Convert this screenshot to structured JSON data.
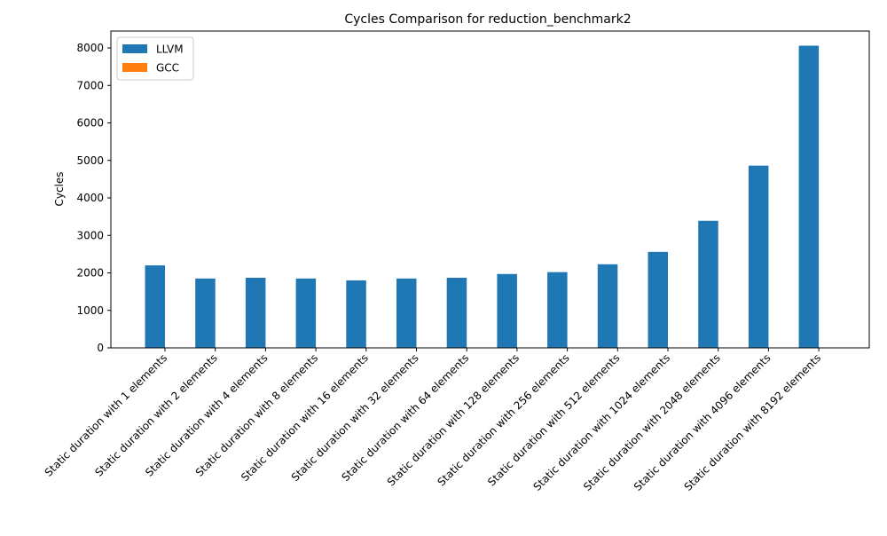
{
  "chart_data": {
    "type": "bar",
    "title": "Cycles Comparison for reduction_benchmark2",
    "xlabel": "",
    "ylabel": "Cycles",
    "ylim": [
      0,
      8450
    ],
    "yticks": [
      0,
      1000,
      2000,
      3000,
      4000,
      5000,
      6000,
      7000,
      8000
    ],
    "grid": false,
    "legend_position": "top-left",
    "categories": [
      "Static duration with 1 elements",
      "Static duration with 2 elements",
      "Static duration with 4 elements",
      "Static duration with 8 elements",
      "Static duration with 16 elements",
      "Static duration with 32 elements",
      "Static duration with 64 elements",
      "Static duration with 128 elements",
      "Static duration with 256 elements",
      "Static duration with 512 elements",
      "Static duration with 1024 elements",
      "Static duration with 2048 elements",
      "Static duration with 4096 elements",
      "Static duration with 8192 elements"
    ],
    "series": [
      {
        "name": "LLVM",
        "color": "#1f77b4",
        "values": [
          2200,
          1850,
          1870,
          1850,
          1800,
          1850,
          1870,
          1970,
          2020,
          2230,
          2560,
          3390,
          4860,
          8060
        ]
      },
      {
        "name": "GCC",
        "color": "#ff7f0e",
        "values": [
          0,
          0,
          0,
          0,
          0,
          0,
          0,
          0,
          0,
          0,
          0,
          0,
          0,
          0
        ]
      }
    ]
  }
}
